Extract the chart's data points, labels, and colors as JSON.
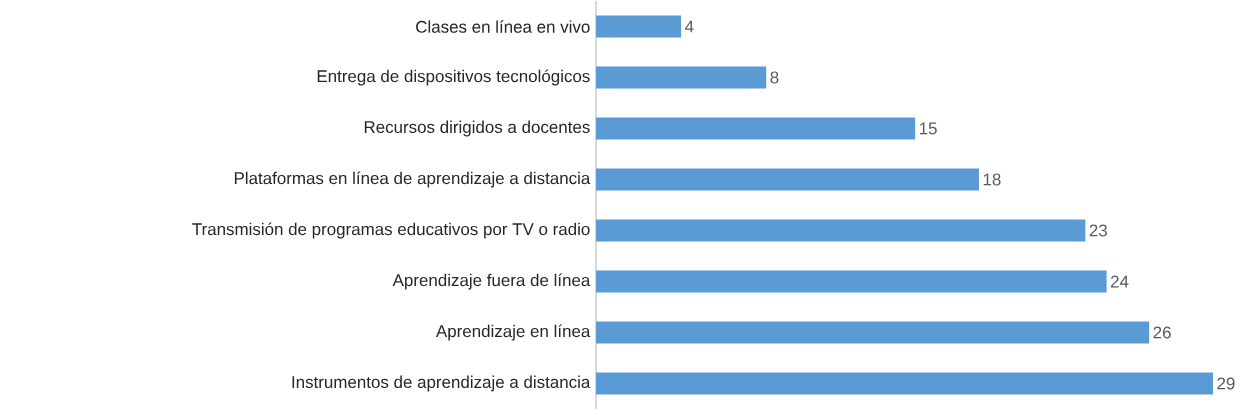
{
  "chart_data": {
    "type": "bar",
    "orientation": "horizontal",
    "data_labels": true,
    "color": "#5b9bd5",
    "categories": [
      "Clases en línea en vivo",
      "Entrega de dispositivos tecnológicos",
      "Recursos dirigidos a docentes",
      "Plataformas en línea de aprendizaje a distancia",
      "Transmisión de programas educativos por TV o radio",
      "Aprendizaje fuera de línea",
      "Aprendizaje en línea",
      "Instrumentos de aprendizaje a distancia"
    ],
    "values": [
      4,
      8,
      15,
      18,
      23,
      24,
      26,
      29
    ]
  }
}
